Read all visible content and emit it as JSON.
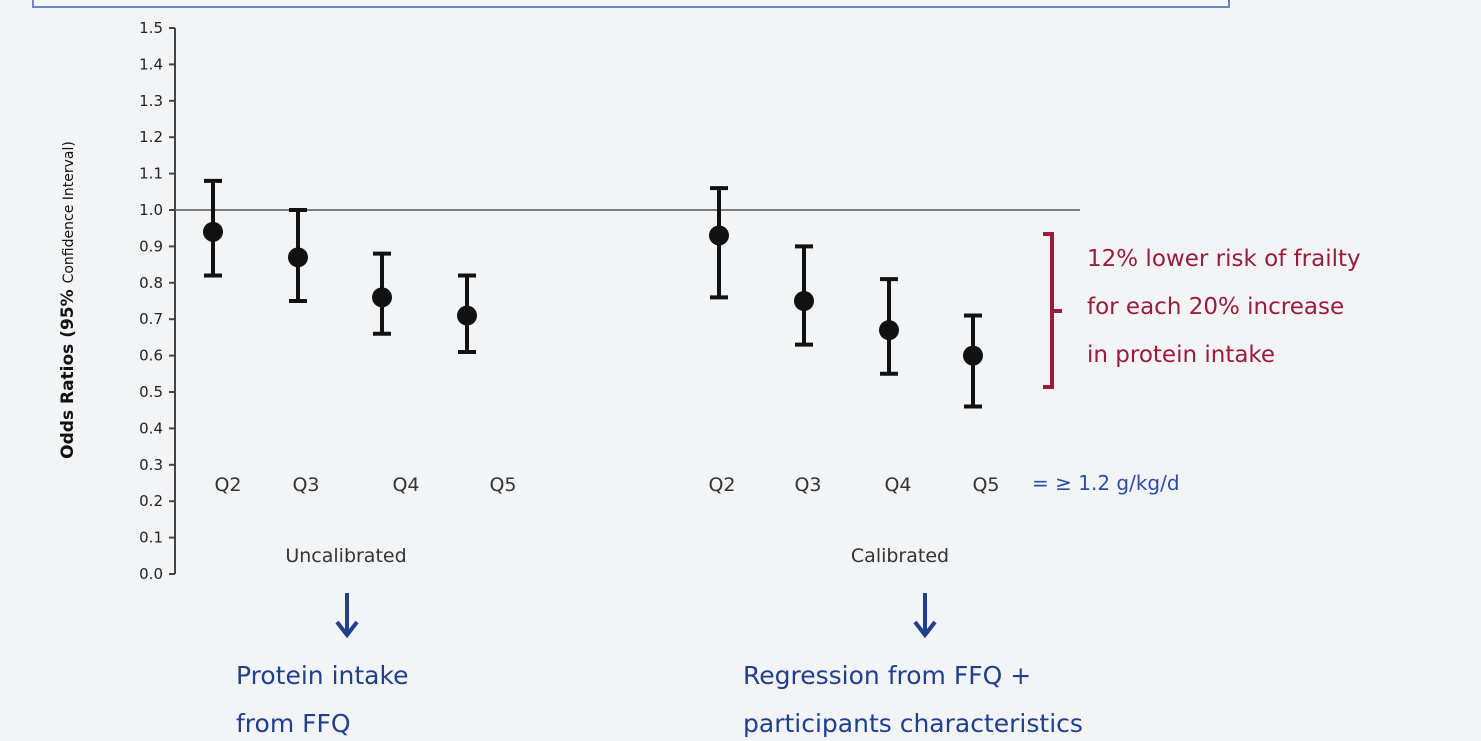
{
  "chart_data": {
    "type": "scatter",
    "ylabel_main": "Odds Ratios (95%",
    "ylabel_sub": "Confidence Interval)",
    "ylim": [
      0.0,
      1.5
    ],
    "yticks": [
      "0.0",
      "0.1",
      "0.2",
      "0.3",
      "0.4",
      "0.5",
      "0.6",
      "0.7",
      "0.8",
      "0.9",
      "1.0",
      "1.1",
      "1.2",
      "1.3",
      "1.4",
      "1.5"
    ],
    "reference_line": 1.0,
    "groups": [
      {
        "label": "Uncalibrated",
        "points": [
          {
            "category": "Q2",
            "or": 0.94,
            "low": 0.82,
            "high": 1.08
          },
          {
            "category": "Q3",
            "or": 0.87,
            "low": 0.75,
            "high": 1.0
          },
          {
            "category": "Q4",
            "or": 0.76,
            "low": 0.66,
            "high": 0.88
          },
          {
            "category": "Q5",
            "or": 0.71,
            "low": 0.61,
            "high": 0.82
          }
        ]
      },
      {
        "label": "Calibrated",
        "points": [
          {
            "category": "Q2",
            "or": 0.93,
            "low": 0.76,
            "high": 1.06
          },
          {
            "category": "Q3",
            "or": 0.75,
            "low": 0.63,
            "high": 0.9
          },
          {
            "category": "Q4",
            "or": 0.67,
            "low": 0.55,
            "high": 0.81
          },
          {
            "category": "Q5",
            "or": 0.6,
            "low": 0.46,
            "high": 0.71
          }
        ]
      }
    ]
  },
  "q5_suffix": "= ≥ 1.2 g/kg/d",
  "annotation": {
    "lines": [
      "12% lower risk of frailty",
      "for each 20% increase",
      "in protein intake"
    ],
    "color": "#9b1b3a"
  },
  "uncalibrated_note": {
    "lines": [
      "Protein intake",
      "from FFQ"
    ]
  },
  "calibrated_note": {
    "lines": [
      "Regression from FFQ +",
      "participants characteristics"
    ]
  },
  "colors": {
    "marker": "#111111",
    "arrow": "#1f3f8f",
    "frame": "#6f86c4"
  }
}
